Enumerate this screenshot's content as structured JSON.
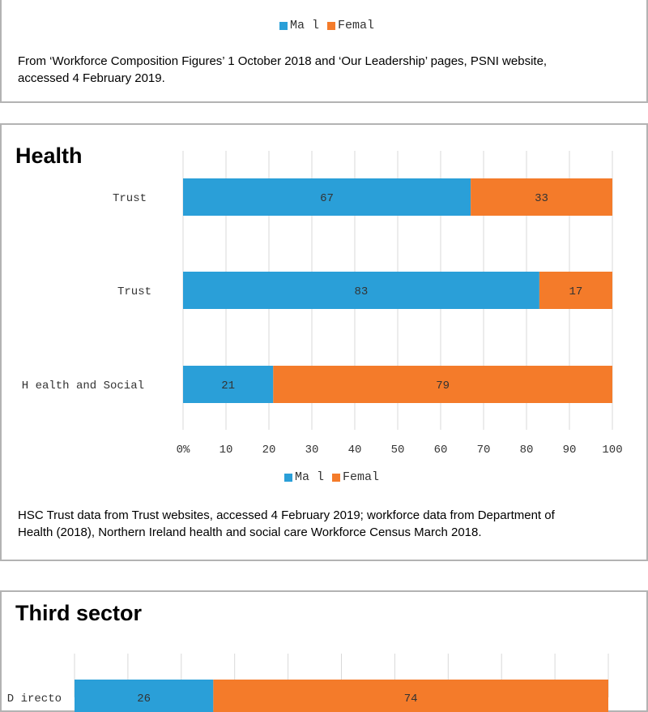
{
  "colors": {
    "male": "#2a9fd8",
    "female": "#f47b2a",
    "grid": "#d9d9d9",
    "text": "#333333"
  },
  "top_panel": {
    "legend": {
      "male": "Ma l",
      "female": "Femal"
    },
    "note": "From ‘Workforce Composition Figures’ 1 October 2018 and ‘Our Leadership’ pages, PSNI website, accessed 4 February 2019."
  },
  "health_panel": {
    "title": "Health",
    "legend": {
      "male": "Ma l",
      "female": "Femal"
    },
    "note": "HSC Trust data from Trust websites, accessed 4 February 2019; workforce data from Department of Health (2018), Northern Ireland health and social care Workforce Census March 2018."
  },
  "third_panel": {
    "title": "Third sector"
  },
  "chart_data": [
    {
      "type": "bar",
      "orientation": "horizontal",
      "stacked": true,
      "categories": [
        "Trust",
        "Trust",
        "H ealth and Social"
      ],
      "series": [
        {
          "name": "Ma l",
          "values": [
            67,
            83,
            21
          ]
        },
        {
          "name": "Femal",
          "values": [
            33,
            17,
            79
          ]
        }
      ],
      "x_ticks": [
        "0%",
        "10",
        "20",
        "30",
        "40",
        "50",
        "60",
        "70",
        "80",
        "90",
        "100"
      ],
      "xlim": [
        0,
        100
      ],
      "grid": true,
      "legend": "bottom"
    },
    {
      "type": "bar",
      "orientation": "horizontal",
      "stacked": true,
      "categories": [
        "D irecto"
      ],
      "series": [
        {
          "name": "Ma l",
          "values": [
            26
          ]
        },
        {
          "name": "Femal",
          "values": [
            74
          ]
        }
      ],
      "xlim": [
        0,
        100
      ],
      "grid": true
    }
  ]
}
